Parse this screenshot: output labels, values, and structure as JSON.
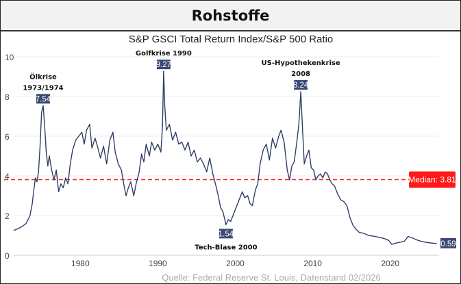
{
  "header": {
    "title": "Rohstoffe"
  },
  "chart_data": {
    "type": "line",
    "title": "S&P GSCI Total Return Index/S&P 500 Ratio",
    "xlabel": "",
    "ylabel": "",
    "xlim": [
      1971.4,
      2026.3
    ],
    "ylim": [
      0,
      10
    ],
    "xticks": [
      "1980",
      "1990",
      "2000",
      "2010",
      "2020"
    ],
    "yticks": [
      "0",
      "2",
      "4",
      "6",
      "8",
      "10"
    ],
    "grid": true,
    "line_color": "#2e3e66",
    "series": [
      {
        "name": "S&P GSCI TR / S&P 500",
        "x": [
          1971.4,
          1972,
          1972.5,
          1973,
          1973.5,
          1973.8,
          1974.0,
          1974.2,
          1974.4,
          1974.6,
          1974.8,
          1975.0,
          1975.2,
          1975.4,
          1975.6,
          1975.8,
          1976,
          1976.3,
          1976.6,
          1976.9,
          1977.2,
          1977.5,
          1977.8,
          1978.1,
          1978.4,
          1978.7,
          1979,
          1979.4,
          1979.8,
          1980.2,
          1980.5,
          1980.8,
          1981.2,
          1981.5,
          1981.9,
          1982.2,
          1982.6,
          1983,
          1983.4,
          1983.8,
          1984.2,
          1984.5,
          1984.9,
          1985.3,
          1985.6,
          1985.9,
          1986.2,
          1986.5,
          1986.9,
          1987.2,
          1987.6,
          1987.9,
          1988.2,
          1988.5,
          1988.9,
          1989.2,
          1989.6,
          1990.0,
          1990.4,
          1990.6,
          1990.75,
          1990.9,
          1991.1,
          1991.5,
          1991.9,
          1992.3,
          1992.7,
          1993.1,
          1993.5,
          1993.9,
          1994.3,
          1994.7,
          1995.1,
          1995.5,
          1995.9,
          1996.3,
          1996.7,
          1997.1,
          1997.5,
          1997.8,
          1998.1,
          1998.4,
          1998.8,
          1999.1,
          1999.4,
          1999.8,
          2000.2,
          2000.6,
          2000.9,
          2001.2,
          2001.6,
          2001.9,
          2002.2,
          2002.6,
          2002.9,
          2003.2,
          2003.6,
          2004,
          2004.4,
          2004.8,
          2005.2,
          2005.6,
          2005.9,
          2006.3,
          2006.7,
          2007.0,
          2007.3,
          2007.6,
          2007.9,
          2008.2,
          2008.45,
          2008.7,
          2008.9,
          2009.2,
          2009.5,
          2009.8,
          2010.1,
          2010.4,
          2010.7,
          2011.0,
          2011.3,
          2011.6,
          2011.9,
          2012.2,
          2012.5,
          2012.8,
          2013.2,
          2013.6,
          2014,
          2014.4,
          2014.8,
          2015.2,
          2015.6,
          2016,
          2016.6,
          2017.2,
          2018,
          2018.6,
          2019.2,
          2019.8,
          2020.2,
          2020.6,
          2021.2,
          2021.8,
          2022.3,
          2022.8,
          2023.4,
          2024,
          2024.6,
          2025.2,
          2026.0
        ],
        "values": [
          1.25,
          1.35,
          1.45,
          1.6,
          2.0,
          2.6,
          3.3,
          3.9,
          3.7,
          4.2,
          5.5,
          7.2,
          7.54,
          6.5,
          5.2,
          4.5,
          5.0,
          4.3,
          3.8,
          4.3,
          3.2,
          3.6,
          3.4,
          3.9,
          3.6,
          4.6,
          5.3,
          5.8,
          6.0,
          6.2,
          5.6,
          6.3,
          6.6,
          5.4,
          5.9,
          5.5,
          4.9,
          5.5,
          4.6,
          5.8,
          6.2,
          5.2,
          4.6,
          4.3,
          3.6,
          3.0,
          3.4,
          3.7,
          3.0,
          3.6,
          4.2,
          5.1,
          4.7,
          5.6,
          5.0,
          5.7,
          5.3,
          5.6,
          5.2,
          6.5,
          9.27,
          7.5,
          6.3,
          6.6,
          5.8,
          6.2,
          5.6,
          5.7,
          5.3,
          5.7,
          5.0,
          5.3,
          4.7,
          4.9,
          4.6,
          4.2,
          4.9,
          4.1,
          3.5,
          3.0,
          2.4,
          2.2,
          1.54,
          1.8,
          1.7,
          2.1,
          2.5,
          2.9,
          3.2,
          2.9,
          3.0,
          2.6,
          2.5,
          3.3,
          3.6,
          4.6,
          5.3,
          5.6,
          4.8,
          5.9,
          5.4,
          6.0,
          6.3,
          5.7,
          4.3,
          3.8,
          4.5,
          4.7,
          5.6,
          6.6,
          8.24,
          6.2,
          4.6,
          5.0,
          5.3,
          4.4,
          4.3,
          3.8,
          4.0,
          4.1,
          3.9,
          4.2,
          4.1,
          3.8,
          3.6,
          3.5,
          3.1,
          2.8,
          2.7,
          2.5,
          1.9,
          1.5,
          1.3,
          1.15,
          1.1,
          1.0,
          0.95,
          0.9,
          0.85,
          0.75,
          0.55,
          0.6,
          0.65,
          0.7,
          0.95,
          0.88,
          0.78,
          0.7,
          0.65,
          0.62,
          0.59
        ]
      }
    ],
    "median": {
      "value": 3.81,
      "label": "Median: 3.81",
      "color": "#ff1a1a"
    },
    "annotations": [
      {
        "lines": [
          "Ölkrise",
          "1973/1974"
        ],
        "value_label": "7.54",
        "x": 1975.2,
        "y": 7.54,
        "position": "above"
      },
      {
        "lines": [
          "Golfkrise 1990"
        ],
        "value_label": "9.27",
        "x": 1990.75,
        "y": 9.27,
        "position": "above"
      },
      {
        "lines": [
          "US-Hypothekenkrise",
          "2008"
        ],
        "value_label": "8.24",
        "x": 2008.45,
        "y": 8.24,
        "position": "above"
      },
      {
        "lines": [
          "Tech-Blase 2000"
        ],
        "value_label": "1.54",
        "x": 1998.8,
        "y": 1.54,
        "position": "below"
      }
    ],
    "last_value_label": "0.59",
    "source": "Quelle: Federal Reserve St. Louis, Datenstand 02/2026"
  }
}
